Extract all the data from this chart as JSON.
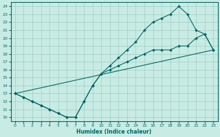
{
  "xlabel": "Humidex (Indice chaleur)",
  "bg_color": "#c8ece4",
  "grid_color": "#a0ccc4",
  "line_color": "#006666",
  "xlim": [
    -0.5,
    23.5
  ],
  "ylim": [
    9.5,
    24.5
  ],
  "xticks": [
    0,
    1,
    2,
    3,
    4,
    5,
    6,
    7,
    8,
    9,
    10,
    11,
    12,
    13,
    14,
    15,
    16,
    17,
    18,
    19,
    20,
    21,
    22,
    23
  ],
  "yticks": [
    10,
    11,
    12,
    13,
    14,
    15,
    16,
    17,
    18,
    19,
    20,
    21,
    22,
    23,
    24
  ],
  "curve1_x": [
    0,
    1,
    2,
    3,
    4,
    5,
    6,
    7,
    8,
    9,
    10,
    11,
    12,
    13,
    14,
    15,
    16,
    17,
    18,
    19,
    20,
    21,
    22,
    23
  ],
  "curve1_y": [
    13,
    12.5,
    12,
    11.5,
    11,
    10.5,
    10,
    10,
    12,
    14,
    15.5,
    16.5,
    17.5,
    18.5,
    19.5,
    21,
    22,
    22.5,
    23,
    24,
    23,
    21,
    20.5,
    18.5
  ],
  "curve2_x": [
    0,
    1,
    2,
    3,
    4,
    5,
    6,
    7,
    8,
    9,
    10,
    11,
    12,
    13,
    14,
    15,
    16,
    17,
    18,
    19,
    20,
    21,
    22,
    23
  ],
  "curve2_y": [
    13,
    12.5,
    12,
    11.5,
    11,
    10.5,
    10,
    10,
    12,
    14,
    15.5,
    16,
    16.5,
    17,
    17.5,
    18,
    18.5,
    18.5,
    18.5,
    19,
    19,
    20,
    20.5,
    18.5
  ],
  "line3_x": [
    0,
    23
  ],
  "line3_y": [
    13,
    18.5
  ]
}
